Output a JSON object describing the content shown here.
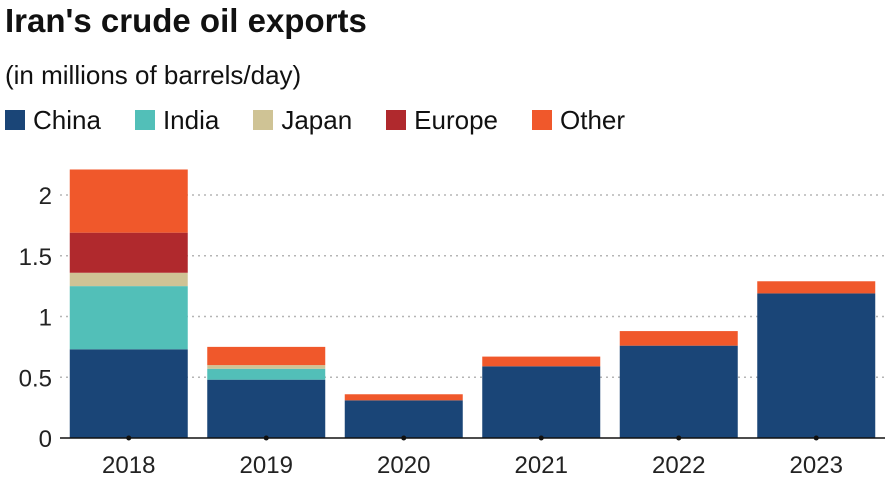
{
  "chart_data": {
    "type": "bar",
    "stacked": true,
    "title": "Iran's crude oil exports",
    "subtitle": "(in millions of barrels/day)",
    "xlabel": "",
    "ylabel": "",
    "categories": [
      "2018",
      "2019",
      "2020",
      "2021",
      "2022",
      "2023"
    ],
    "yticks": [
      "0",
      "0.5",
      "1",
      "1.5",
      "2"
    ],
    "ylim": [
      0,
      2.25
    ],
    "grid": true,
    "legend_position": "top",
    "series": [
      {
        "name": "China",
        "color": "#1a4577",
        "values": [
          0.73,
          0.48,
          0.31,
          0.59,
          0.76,
          1.19
        ]
      },
      {
        "name": "India",
        "color": "#52bfb8",
        "values": [
          0.52,
          0.09,
          0.0,
          0.0,
          0.0,
          0.0
        ]
      },
      {
        "name": "Japan",
        "color": "#cfc395",
        "values": [
          0.11,
          0.03,
          0.0,
          0.0,
          0.0,
          0.0
        ]
      },
      {
        "name": "Europe",
        "color": "#b0292d",
        "values": [
          0.33,
          0.0,
          0.0,
          0.0,
          0.0,
          0.0
        ]
      },
      {
        "name": "Other",
        "color": "#f0582b",
        "values": [
          0.52,
          0.15,
          0.05,
          0.08,
          0.12,
          0.1
        ]
      }
    ]
  }
}
